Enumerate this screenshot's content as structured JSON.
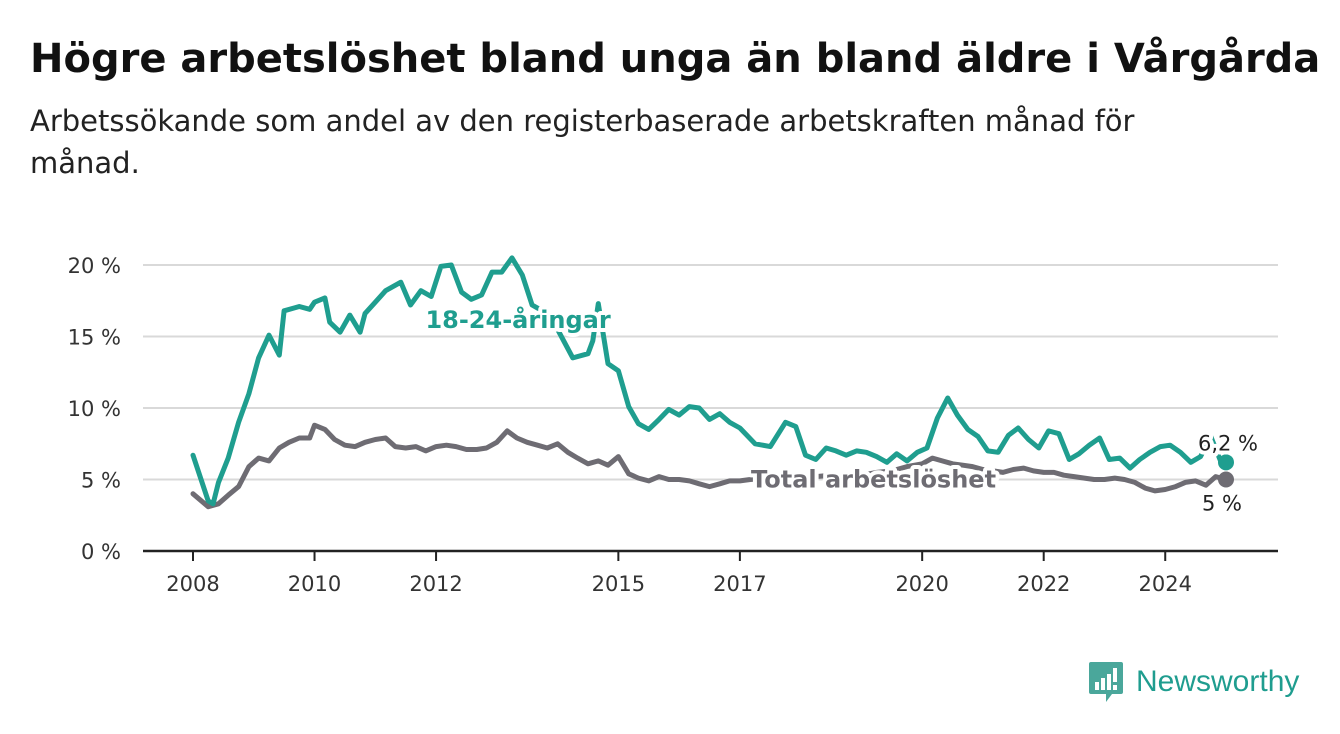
{
  "title": "Högre arbetslöshet bland unga än bland äldre i Vårgårda",
  "subtitle": "Arbetssökande som andel av den registerbaserade arbetskraften månad för månad.",
  "brand": "Newsworthy",
  "colors": {
    "youth": "#1f9e8f",
    "total": "#6e6c73",
    "grid": "#d9d9d9",
    "axis": "#222222",
    "brand": "#1f9d8f"
  },
  "chart_data": {
    "type": "line",
    "title": "Högre arbetslöshet bland unga än bland äldre i Vårgårda",
    "xlabel": "",
    "ylabel": "",
    "xlim": [
      2008,
      2025.5
    ],
    "ylim": [
      0,
      20
    ],
    "x_ticks": [
      2008,
      2010,
      2012,
      2015,
      2017,
      2020,
      2022,
      2024
    ],
    "y_ticks": [
      0,
      5,
      10,
      15,
      20
    ],
    "y_tick_labels": [
      "0 %",
      "5 %",
      "10 %",
      "15 %",
      "20 %"
    ],
    "grid": "horizontal",
    "series": [
      {
        "name": "18-24-åringar",
        "end_label": "6,2 %",
        "x": [
          2008.0,
          2008.25,
          2008.33,
          2008.42,
          2008.58,
          2008.75,
          2008.92,
          2009.08,
          2009.25,
          2009.42,
          2009.5,
          2009.67,
          2009.75,
          2009.92,
          2010.0,
          2010.17,
          2010.25,
          2010.42,
          2010.58,
          2010.75,
          2010.83,
          2011.0,
          2011.17,
          2011.42,
          2011.58,
          2011.75,
          2011.92,
          2012.08,
          2012.25,
          2012.42,
          2012.58,
          2012.75,
          2012.92,
          2013.08,
          2013.25,
          2013.42,
          2013.58,
          2013.75,
          2014.0,
          2014.25,
          2014.5,
          2014.58,
          2014.67,
          2014.83,
          2015.0,
          2015.17,
          2015.33,
          2015.5,
          2015.67,
          2015.83,
          2016.0,
          2016.17,
          2016.33,
          2016.5,
          2016.67,
          2016.83,
          2017.0,
          2017.25,
          2017.5,
          2017.75,
          2017.92,
          2018.08,
          2018.25,
          2018.42,
          2018.58,
          2018.75,
          2018.92,
          2019.08,
          2019.25,
          2019.42,
          2019.58,
          2019.75,
          2019.92,
          2020.08,
          2020.25,
          2020.42,
          2020.58,
          2020.75,
          2020.92,
          2021.08,
          2021.25,
          2021.42,
          2021.58,
          2021.75,
          2021.92,
          2022.08,
          2022.25,
          2022.42,
          2022.58,
          2022.75,
          2022.92,
          2023.08,
          2023.25,
          2023.42,
          2023.58,
          2023.75,
          2023.92,
          2024.08,
          2024.25,
          2024.42,
          2024.58,
          2024.75,
          2024.92,
          2025.0
        ],
        "values": [
          6.7,
          3.5,
          3.3,
          4.8,
          6.5,
          9.0,
          11.0,
          13.5,
          15.1,
          13.7,
          16.8,
          17.0,
          17.1,
          16.9,
          17.4,
          17.7,
          16.0,
          15.3,
          16.5,
          15.3,
          16.6,
          17.4,
          18.2,
          18.8,
          17.2,
          18.2,
          17.8,
          19.9,
          20.0,
          18.1,
          17.6,
          17.9,
          19.5,
          19.5,
          20.5,
          19.3,
          17.2,
          16.8,
          15.5,
          13.5,
          13.8,
          14.7,
          17.3,
          13.1,
          12.6,
          10.1,
          8.9,
          8.5,
          9.2,
          9.9,
          9.5,
          10.1,
          10.0,
          9.2,
          9.6,
          9.0,
          8.6,
          7.5,
          7.3,
          9.0,
          8.7,
          6.7,
          6.4,
          7.2,
          7.0,
          6.7,
          7.0,
          6.9,
          6.6,
          6.2,
          6.8,
          6.3,
          6.9,
          7.2,
          9.3,
          10.7,
          9.5,
          8.5,
          8.0,
          7.0,
          6.9,
          8.1,
          8.6,
          7.8,
          7.2,
          8.4,
          8.2,
          6.4,
          6.8,
          7.4,
          7.9,
          6.4,
          6.5,
          5.8,
          6.4,
          6.9,
          7.3,
          7.4,
          6.9,
          6.2,
          6.6,
          8.0,
          6.2,
          6.2
        ]
      },
      {
        "name": "Total arbetslöshet",
        "end_label": "5 %",
        "x": [
          2008.0,
          2008.25,
          2008.42,
          2008.58,
          2008.75,
          2008.92,
          2009.08,
          2009.25,
          2009.42,
          2009.58,
          2009.75,
          2009.92,
          2010.0,
          2010.17,
          2010.33,
          2010.5,
          2010.67,
          2010.83,
          2011.0,
          2011.17,
          2011.33,
          2011.5,
          2011.67,
          2011.83,
          2012.0,
          2012.17,
          2012.33,
          2012.5,
          2012.67,
          2012.83,
          2013.0,
          2013.17,
          2013.33,
          2013.5,
          2013.67,
          2013.83,
          2014.0,
          2014.17,
          2014.33,
          2014.5,
          2014.67,
          2014.83,
          2015.0,
          2015.17,
          2015.33,
          2015.5,
          2015.67,
          2015.83,
          2016.0,
          2016.17,
          2016.33,
          2016.5,
          2016.67,
          2016.83,
          2017.0,
          2017.17,
          2017.5,
          2017.75,
          2018.0,
          2018.25,
          2018.5,
          2018.75,
          2019.0,
          2019.25,
          2019.5,
          2019.75,
          2020.0,
          2020.17,
          2020.33,
          2020.5,
          2020.67,
          2020.83,
          2021.0,
          2021.17,
          2021.33,
          2021.5,
          2021.67,
          2021.83,
          2022.0,
          2022.17,
          2022.33,
          2022.5,
          2022.67,
          2022.83,
          2023.0,
          2023.17,
          2023.33,
          2023.5,
          2023.67,
          2023.83,
          2024.0,
          2024.17,
          2024.33,
          2024.5,
          2024.67,
          2024.83,
          2025.0
        ],
        "values": [
          4.0,
          3.1,
          3.3,
          3.9,
          4.5,
          5.9,
          6.5,
          6.3,
          7.2,
          7.6,
          7.9,
          7.9,
          8.8,
          8.5,
          7.8,
          7.4,
          7.3,
          7.6,
          7.8,
          7.9,
          7.3,
          7.2,
          7.3,
          7.0,
          7.3,
          7.4,
          7.3,
          7.1,
          7.1,
          7.2,
          7.6,
          8.4,
          7.9,
          7.6,
          7.4,
          7.2,
          7.5,
          6.9,
          6.5,
          6.1,
          6.3,
          6.0,
          6.6,
          5.4,
          5.1,
          4.9,
          5.2,
          5.0,
          5.0,
          4.9,
          4.7,
          4.5,
          4.7,
          4.9,
          4.9,
          5.0,
          5.1,
          5.2,
          5.3,
          5.2,
          5.3,
          5.2,
          5.3,
          5.5,
          5.6,
          5.9,
          6.1,
          6.5,
          6.3,
          6.1,
          6.0,
          5.9,
          5.7,
          5.6,
          5.5,
          5.7,
          5.8,
          5.6,
          5.5,
          5.5,
          5.3,
          5.2,
          5.1,
          5.0,
          5.0,
          5.1,
          5.0,
          4.8,
          4.4,
          4.2,
          4.3,
          4.5,
          4.8,
          4.9,
          4.6,
          5.2,
          5.0
        ]
      }
    ]
  }
}
